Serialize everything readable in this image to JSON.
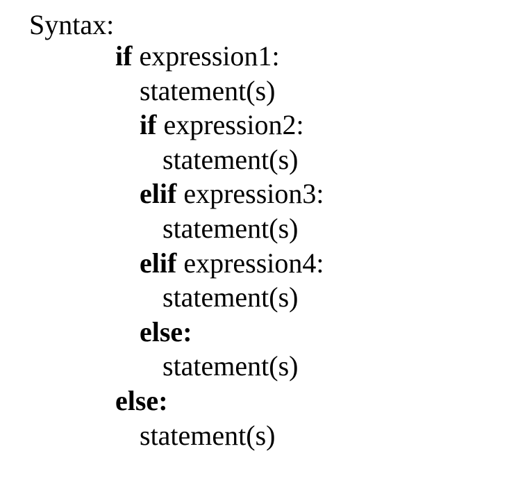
{
  "heading": "Syntax:",
  "lines": [
    {
      "indent": 1,
      "keyword": "if",
      "rest": "expression1:"
    },
    {
      "indent": 2,
      "keyword": "",
      "rest": "statement(s)"
    },
    {
      "indent": 2,
      "keyword": "if",
      "rest": "expression2:"
    },
    {
      "indent": 3,
      "keyword": "",
      "rest": "statement(s)"
    },
    {
      "indent": 2,
      "keyword": "elif",
      "rest": "expression3:"
    },
    {
      "indent": 3,
      "keyword": "",
      "rest": "statement(s)"
    },
    {
      "indent": 2,
      "keyword": "elif",
      "rest": "expression4:"
    },
    {
      "indent": 3,
      "keyword": "",
      "rest": "statement(s)"
    },
    {
      "indent": 2,
      "keyword": "else:",
      "rest": ""
    },
    {
      "indent": 3,
      "keyword": "",
      "rest": "statement(s)"
    },
    {
      "indent": 1,
      "keyword": "else:",
      "rest": ""
    },
    {
      "indent": 2,
      "keyword": "",
      "rest": "statement(s)"
    }
  ]
}
